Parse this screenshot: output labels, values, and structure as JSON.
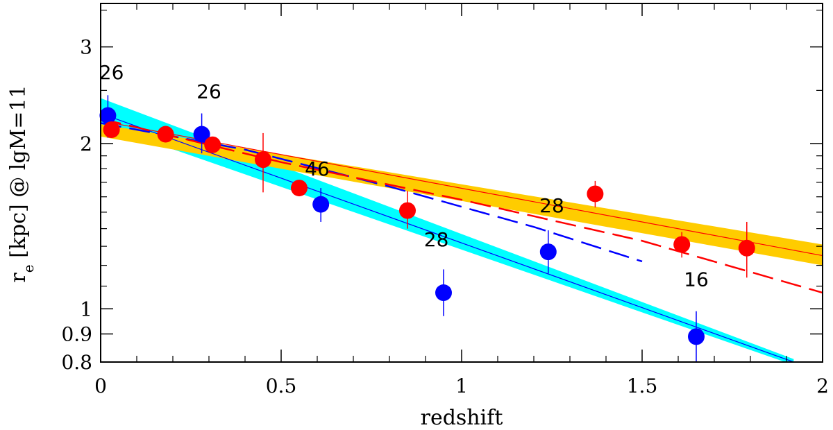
{
  "chart_data": {
    "type": "scatter",
    "title": "",
    "xlabel": "redshift",
    "ylabel_main": "r",
    "ylabel_sub": "e",
    "ylabel_rest": " [kpc] @ lgM=11",
    "xlim": [
      0,
      2
    ],
    "ylim": [
      0.8,
      3.6
    ],
    "yscale": "log",
    "x_ticks": [
      {
        "value": 0,
        "label": "0"
      },
      {
        "value": 0.5,
        "label": "0.5"
      },
      {
        "value": 1,
        "label": "1"
      },
      {
        "value": 1.5,
        "label": "1.5"
      },
      {
        "value": 2,
        "label": "2"
      }
    ],
    "y_ticks": [
      {
        "value": 0.8,
        "label": "0.8"
      },
      {
        "value": 0.9,
        "label": "0.9"
      },
      {
        "value": 1,
        "label": "1"
      },
      {
        "value": 2,
        "label": "2"
      },
      {
        "value": 3,
        "label": "3"
      }
    ],
    "colors": {
      "blue": "#0000ff",
      "red": "#ff0000",
      "cyan_band": "#00ffff",
      "orange_band": "#ffcc00"
    },
    "bands": [
      {
        "name": "blue-fit-band",
        "color": "#00ffff",
        "x": [
          0,
          1.92
        ],
        "lower": [
          2.17,
          0.79
        ],
        "upper": [
          2.42,
          0.81
        ]
      },
      {
        "name": "red-fit-band",
        "color": "#ffcc00",
        "x": [
          0,
          2
        ],
        "lower": [
          2.06,
          1.2
        ],
        "upper": [
          2.17,
          1.31
        ]
      }
    ],
    "lines": [
      {
        "name": "blue-fit-line",
        "color": "#0000ff",
        "style": "solid",
        "width": 1.2,
        "x": [
          0,
          1.92
        ],
        "y": [
          2.27,
          0.8
        ]
      },
      {
        "name": "red-fit-line",
        "color": "#ff0000",
        "style": "solid",
        "width": 1.2,
        "x": [
          0,
          2
        ],
        "y": [
          2.2,
          1.25
        ]
      },
      {
        "name": "blue-dashed-line",
        "color": "#0000ff",
        "style": "dashed",
        "width": 2.5,
        "x": [
          0,
          0.4,
          0.8,
          1.2,
          1.5
        ],
        "y": [
          2.18,
          1.95,
          1.67,
          1.41,
          1.22
        ]
      },
      {
        "name": "red-dashed-line",
        "color": "#ff0000",
        "style": "dashed",
        "width": 2.5,
        "x": [
          0,
          0.5,
          1.0,
          1.5,
          2.0
        ],
        "y": [
          2.22,
          1.85,
          1.58,
          1.33,
          1.07
        ]
      }
    ],
    "series": [
      {
        "name": "blue",
        "color": "#0000ff",
        "points": [
          {
            "x": 0.02,
            "y": 2.25,
            "err_lo": 2.05,
            "err_hi": 2.45
          },
          {
            "x": 0.28,
            "y": 2.08,
            "err_lo": 1.92,
            "err_hi": 2.27
          },
          {
            "x": 0.61,
            "y": 1.55,
            "err_lo": 1.44,
            "err_hi": 1.66
          },
          {
            "x": 0.95,
            "y": 1.07,
            "err_lo": 0.97,
            "err_hi": 1.18
          },
          {
            "x": 1.24,
            "y": 1.27,
            "err_lo": 1.16,
            "err_hi": 1.39
          },
          {
            "x": 1.65,
            "y": 0.89,
            "err_lo": 0.8,
            "err_hi": 0.99
          }
        ]
      },
      {
        "name": "red",
        "color": "#ff0000",
        "points": [
          {
            "x": 0.03,
            "y": 2.12,
            "err_lo": 2.07,
            "err_hi": 2.17
          },
          {
            "x": 0.18,
            "y": 2.08,
            "err_lo": 2.01,
            "err_hi": 2.15
          },
          {
            "x": 0.31,
            "y": 1.99,
            "err_lo": 1.93,
            "err_hi": 2.05
          },
          {
            "x": 0.45,
            "y": 1.87,
            "err_lo": 1.63,
            "err_hi": 2.09
          },
          {
            "x": 0.55,
            "y": 1.66,
            "err_lo": 1.61,
            "err_hi": 1.71
          },
          {
            "x": 0.85,
            "y": 1.51,
            "err_lo": 1.4,
            "err_hi": 1.64
          },
          {
            "x": 1.37,
            "y": 1.62,
            "err_lo": 1.53,
            "err_hi": 1.71
          },
          {
            "x": 1.61,
            "y": 1.31,
            "err_lo": 1.24,
            "err_hi": 1.38
          },
          {
            "x": 1.79,
            "y": 1.29,
            "err_lo": 1.14,
            "err_hi": 1.44
          }
        ]
      }
    ],
    "annotations": [
      {
        "text": "26",
        "x": 0.03,
        "y": 2.62
      },
      {
        "text": "26",
        "x": 0.3,
        "y": 2.42
      },
      {
        "text": "46",
        "x": 0.6,
        "y": 1.75
      },
      {
        "text": "28",
        "x": 0.93,
        "y": 1.3
      },
      {
        "text": "28",
        "x": 1.25,
        "y": 1.5
      },
      {
        "text": "16",
        "x": 1.65,
        "y": 1.1
      }
    ]
  }
}
